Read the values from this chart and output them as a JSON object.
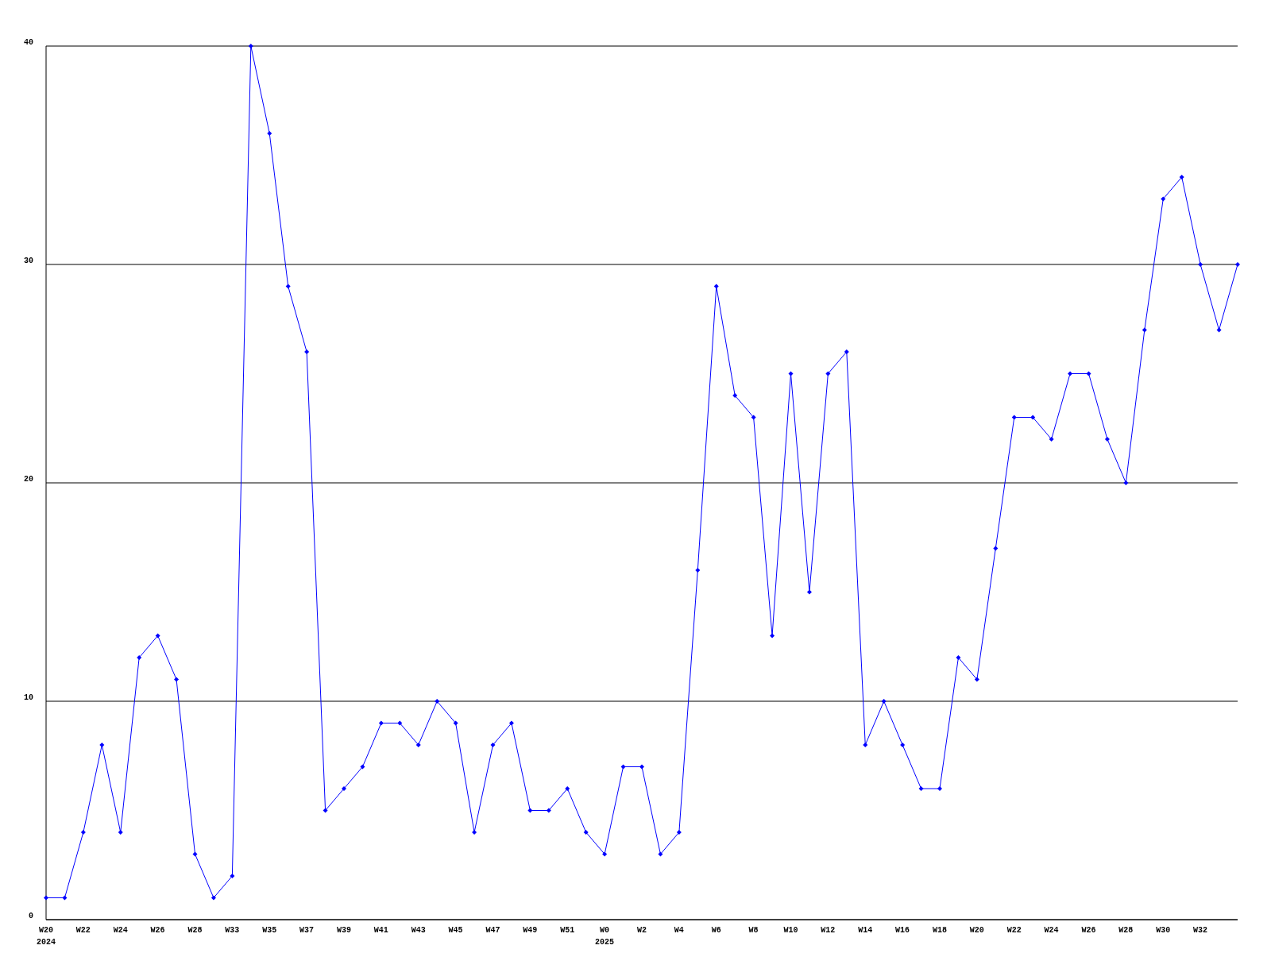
{
  "chart_data": {
    "type": "line",
    "categories": [
      "W20\n2024",
      null,
      "W22",
      null,
      "W24",
      null,
      "W26",
      null,
      "W28",
      null,
      "W33",
      null,
      "W35",
      null,
      "W37",
      null,
      "W39",
      null,
      "W41",
      null,
      "W43",
      null,
      "W45",
      null,
      "W47",
      null,
      "W49",
      null,
      "W51",
      null,
      "W0\n2025",
      null,
      "W2",
      null,
      "W4",
      null,
      "W6",
      null,
      "W8",
      null,
      "W10",
      null,
      "W12",
      null,
      "W14",
      null,
      "W16",
      null,
      "W18",
      null,
      "W20",
      null,
      "W22",
      null,
      "W24",
      null,
      "W26",
      null,
      "W28",
      null,
      "W30",
      null,
      "W32",
      null,
      null
    ],
    "series": [
      {
        "color": "#0000ff",
        "values": [
          1,
          1,
          4,
          8,
          4,
          12,
          13,
          11,
          3,
          1,
          2,
          40,
          36,
          29,
          26,
          5,
          6,
          7,
          9,
          9,
          8,
          10,
          9,
          4,
          8,
          9,
          5,
          5,
          6,
          4,
          3,
          7,
          7,
          3,
          4,
          16,
          29,
          24,
          23,
          13,
          25,
          15,
          25,
          26,
          8,
          10,
          8,
          6,
          6,
          12,
          11,
          17,
          23,
          23,
          22,
          25,
          25,
          22,
          20,
          27,
          33,
          34,
          30,
          27,
          30
        ]
      }
    ],
    "ylim": [
      0,
      40
    ],
    "yticks": [
      0,
      10,
      20,
      30,
      40
    ],
    "grid": "y",
    "marker": "diamond",
    "line_style": "solid"
  }
}
